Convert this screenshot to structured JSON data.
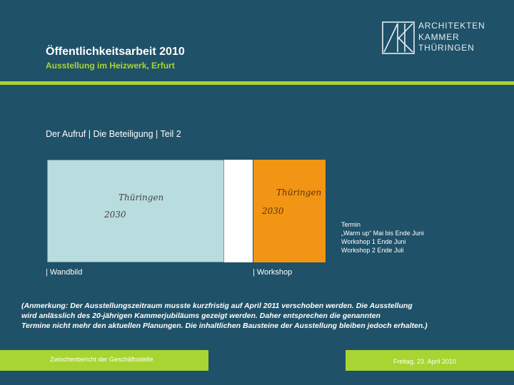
{
  "header": {
    "title": "Öffentlichkeitsarbeit 2010",
    "subtitle": "Ausstellung im Heizwerk, Erfurt"
  },
  "logo": {
    "lines": [
      "ARCHITEKTEN",
      "KAMMER",
      "THÜRINGEN"
    ]
  },
  "section_heading": "Der Aufruf | Die Beteiligung | Teil 2",
  "wandbild": {
    "label_line1": "Thüringen",
    "label_line2": "2030",
    "caption": "| Wandbild"
  },
  "workshop": {
    "label_line1": "Thüringen",
    "label_line2": "2030",
    "caption": "| Workshop"
  },
  "termin": {
    "lines": [
      "Termin",
      "„Warm up“ Mai bis Ende Juni",
      "Workshop 1 Ende Juni",
      "Workshop 2 Ende Juli"
    ]
  },
  "note": {
    "lines": [
      "(Anmerkung: Der Ausstellungszeitraum musste kurzfristig auf April 2011 verschoben werden.  Die Ausstellung",
      "wird anlässlich des 20-jährigen Kammerjubiläums gezeigt werden. Daher entsprechen die genannten",
      "Termine nicht mehr den aktuellen Planungen. Die inhaltlichen Bausteine der Ausstellung bleiben jedoch erhalten.)"
    ]
  },
  "footer": {
    "left": "Zwischenbericht der Geschäftsstelle",
    "right": "Freitag, 23. April 2010"
  },
  "colors": {
    "background": "#1f5168",
    "accent_green": "#a8d532",
    "wandbild_fill": "#b9dcdf",
    "workshop_fill": "#f39514"
  }
}
